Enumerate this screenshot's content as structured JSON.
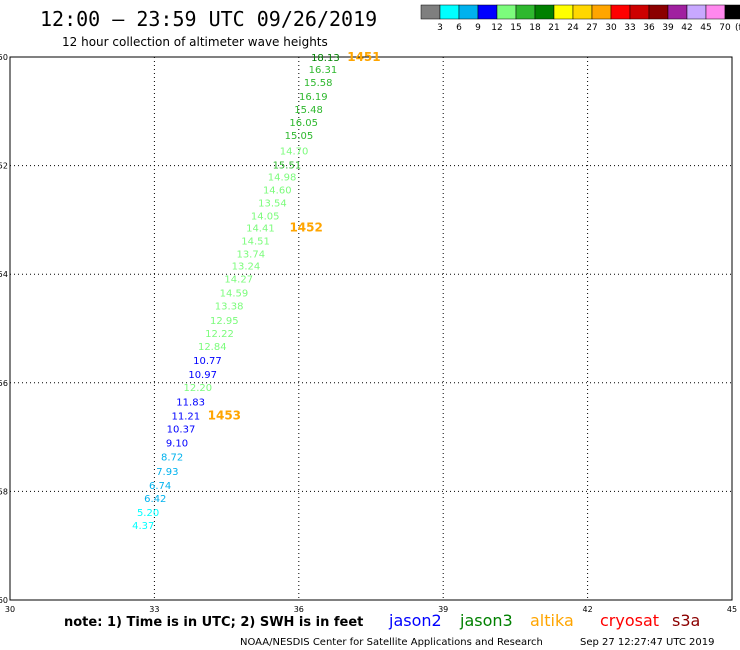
{
  "chart_data": {
    "type": "scatter",
    "title": "12:00 – 23:59 UTC 09/26/2019",
    "subtitle": "12 hour collection of altimeter wave heights",
    "xlabel": "",
    "ylabel": "",
    "xlim": [
      30,
      45
    ],
    "ylim": [
      -60,
      -50
    ],
    "x_ticks": [
      "30",
      "33",
      "36",
      "39",
      "42",
      "45"
    ],
    "y_ticks": [
      "-50",
      "-52",
      "-54",
      "-56",
      "-58",
      "-60"
    ],
    "grid": true,
    "colorbar": {
      "unit": "(ft)",
      "labels": [
        "3",
        "6",
        "9",
        "12",
        "15",
        "18",
        "21",
        "24",
        "27",
        "30",
        "33",
        "36",
        "39",
        "42",
        "45",
        "70"
      ],
      "colors": [
        "#7f7f7f",
        "#00ffff",
        "#00b2ee",
        "#0000ff",
        "#7cfc7c",
        "#2eb82e",
        "#008000",
        "#ffff00",
        "#ffd700",
        "#ffa500",
        "#ff0000",
        "#cd0000",
        "#8b0000",
        "#a020a0",
        "#c8a8ff",
        "#ff88ee",
        "#000000"
      ]
    },
    "points": [
      {
        "x": 36.85,
        "y": -50.0,
        "label": "18.13",
        "color": "#008000"
      },
      {
        "x": 36.8,
        "y": -50.22,
        "label": "16.31",
        "color": "#2eb82e"
      },
      {
        "x": 36.7,
        "y": -50.46,
        "label": "15.58",
        "color": "#2eb82e"
      },
      {
        "x": 36.6,
        "y": -50.72,
        "label": "16.19",
        "color": "#2eb82e"
      },
      {
        "x": 36.5,
        "y": -50.96,
        "label": "15.48",
        "color": "#2eb82e"
      },
      {
        "x": 36.4,
        "y": -51.2,
        "label": "16.05",
        "color": "#2eb82e"
      },
      {
        "x": 36.3,
        "y": -51.44,
        "label": "15.05",
        "color": "#2eb82e"
      },
      {
        "x": 36.2,
        "y": -51.72,
        "label": "14.70",
        "color": "#7cfc7c"
      },
      {
        "x": 36.05,
        "y": -51.98,
        "label": "15.51",
        "color": "#2eb82e"
      },
      {
        "x": 35.95,
        "y": -52.2,
        "label": "14.98",
        "color": "#7cfc7c"
      },
      {
        "x": 35.85,
        "y": -52.44,
        "label": "14.60",
        "color": "#7cfc7c"
      },
      {
        "x": 35.75,
        "y": -52.68,
        "label": "13.54",
        "color": "#7cfc7c"
      },
      {
        "x": 35.6,
        "y": -52.92,
        "label": "14.05",
        "color": "#7cfc7c"
      },
      {
        "x": 35.5,
        "y": -53.14,
        "label": "14.41",
        "color": "#7cfc7c"
      },
      {
        "x": 35.4,
        "y": -53.38,
        "label": "14.51",
        "color": "#7cfc7c"
      },
      {
        "x": 35.3,
        "y": -53.62,
        "label": "13.74",
        "color": "#7cfc7c"
      },
      {
        "x": 35.2,
        "y": -53.84,
        "label": "13.24",
        "color": "#7cfc7c"
      },
      {
        "x": 35.05,
        "y": -54.08,
        "label": "14.27",
        "color": "#7cfc7c"
      },
      {
        "x": 34.95,
        "y": -54.34,
        "label": "14.59",
        "color": "#7cfc7c"
      },
      {
        "x": 34.85,
        "y": -54.58,
        "label": "13.38",
        "color": "#7cfc7c"
      },
      {
        "x": 34.75,
        "y": -54.84,
        "label": "12.95",
        "color": "#7cfc7c"
      },
      {
        "x": 34.65,
        "y": -55.08,
        "label": "12.22",
        "color": "#7cfc7c"
      },
      {
        "x": 34.5,
        "y": -55.32,
        "label": "12.84",
        "color": "#7cfc7c"
      },
      {
        "x": 34.4,
        "y": -55.58,
        "label": "10.77",
        "color": "#0000ff"
      },
      {
        "x": 34.3,
        "y": -55.84,
        "label": "10.97",
        "color": "#0000ff"
      },
      {
        "x": 34.2,
        "y": -56.08,
        "label": "12.20",
        "color": "#7cfc7c"
      },
      {
        "x": 34.05,
        "y": -56.34,
        "label": "11.83",
        "color": "#0000ff"
      },
      {
        "x": 33.95,
        "y": -56.6,
        "label": "11.21",
        "color": "#0000ff"
      },
      {
        "x": 33.85,
        "y": -56.84,
        "label": "10.37",
        "color": "#0000ff"
      },
      {
        "x": 33.7,
        "y": -57.1,
        "label": "9.10",
        "color": "#0000ff"
      },
      {
        "x": 33.6,
        "y": -57.36,
        "label": "8.72",
        "color": "#00b2ee"
      },
      {
        "x": 33.5,
        "y": -57.62,
        "label": "7.93",
        "color": "#00b2ee"
      },
      {
        "x": 33.35,
        "y": -57.88,
        "label": "6.74",
        "color": "#00b2ee"
      },
      {
        "x": 33.25,
        "y": -58.12,
        "label": "6.42",
        "color": "#00b2ee"
      },
      {
        "x": 33.1,
        "y": -58.38,
        "label": "5.20",
        "color": "#00ffff"
      },
      {
        "x": 33.0,
        "y": -58.62,
        "label": "4.37",
        "color": "#00ffff"
      }
    ],
    "pass_labels": [
      {
        "x": 37.7,
        "y": -50.0,
        "label": "1451",
        "color": "#ffa500"
      },
      {
        "x": 36.5,
        "y": -53.14,
        "label": "1452",
        "color": "#ffa500"
      },
      {
        "x": 34.8,
        "y": -56.6,
        "label": "1453",
        "color": "#ffa500"
      }
    ]
  },
  "footer": {
    "note": "note:  1) Time is in UTC;  2) SWH is in feet",
    "satellites": [
      {
        "name": "jason2",
        "color": "#0000ff"
      },
      {
        "name": "jason3",
        "color": "#008000"
      },
      {
        "name": "altika",
        "color": "#ffa500"
      },
      {
        "name": "cryosat",
        "color": "#ff0000"
      },
      {
        "name": "s3a",
        "color": "#8b0000"
      }
    ],
    "credit": "NOAA/NESDIS Center for Satellite Applications and Research",
    "timestamp": "Sep 27 12:27:47 UTC 2019"
  }
}
